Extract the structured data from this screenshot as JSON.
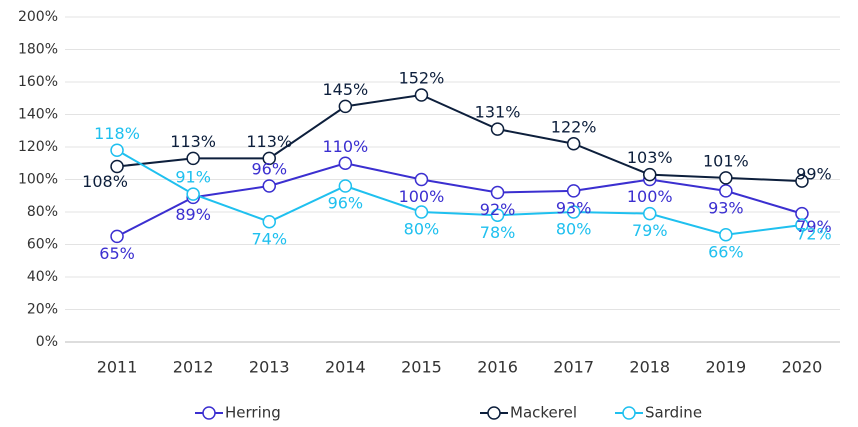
{
  "chart_data": {
    "type": "line",
    "categories": [
      "2011",
      "2012",
      "2013",
      "2014",
      "2015",
      "2016",
      "2017",
      "2018",
      "2019",
      "2020"
    ],
    "series": [
      {
        "name": "Herring",
        "color": "#3b2fd0",
        "values": [
          65,
          89,
          96,
          110,
          100,
          92,
          93,
          100,
          93,
          79
        ],
        "value_labels": [
          "65%",
          "89%",
          "96%",
          "110%",
          "100%",
          "92%",
          "93%",
          "100%",
          "93%",
          "79%"
        ]
      },
      {
        "name": "Mackerel",
        "color": "#0d1f3c",
        "values": [
          108,
          113,
          113,
          145,
          152,
          131,
          122,
          103,
          101,
          99
        ],
        "value_labels": [
          "108%",
          "113%",
          "113%",
          "145%",
          "152%",
          "131%",
          "122%",
          "103%",
          "101%",
          "99%"
        ]
      },
      {
        "name": "Sardine",
        "color": "#1fc0ef",
        "values": [
          118,
          91,
          74,
          96,
          80,
          78,
          80,
          79,
          66,
          72
        ],
        "value_labels": [
          "118%",
          "91%",
          "74%",
          "96%",
          "80%",
          "78%",
          "80%",
          "79%",
          "66%",
          "72%"
        ]
      }
    ],
    "ylim": [
      0,
      200
    ],
    "yticks": [
      {
        "value": 0,
        "label": "0%"
      },
      {
        "value": 20,
        "label": "20%"
      },
      {
        "value": 40,
        "label": "40%"
      },
      {
        "value": 60,
        "label": "60%"
      },
      {
        "value": 80,
        "label": "80%"
      },
      {
        "value": 100,
        "label": "100%"
      },
      {
        "value": 120,
        "label": "120%"
      },
      {
        "value": 140,
        "label": "140%"
      },
      {
        "value": 160,
        "label": "160%"
      },
      {
        "value": 180,
        "label": "180%"
      },
      {
        "value": 200,
        "label": "200%"
      }
    ],
    "grid": true,
    "legend": "bottom"
  }
}
